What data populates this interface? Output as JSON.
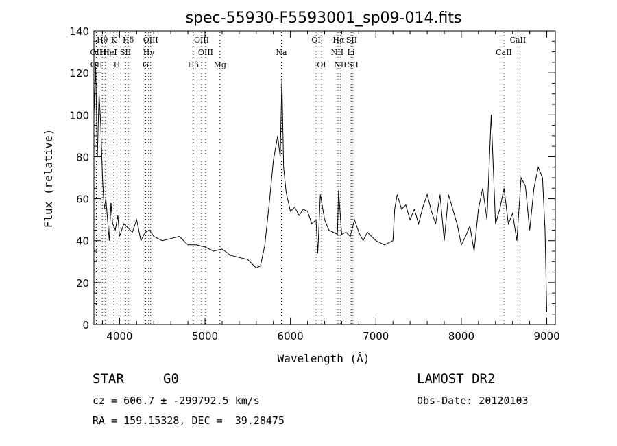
{
  "chart_data": {
    "type": "line",
    "title": "spec-55930-F5593001_sp09-014.fits",
    "xlabel": "Wavelength (Å)",
    "ylabel": "Flux (relative)",
    "xlim": [
      3700,
      9100
    ],
    "ylim": [
      0,
      140
    ],
    "xticks": [
      4000,
      5000,
      6000,
      7000,
      8000,
      9000
    ],
    "yticks": [
      0,
      20,
      40,
      60,
      80,
      100,
      120,
      140
    ],
    "grid": false,
    "series": [
      {
        "x": [
          3700,
          3720,
          3740,
          3760,
          3780,
          3800,
          3820,
          3840,
          3860,
          3880,
          3900,
          3920,
          3950,
          3980,
          4000,
          4050,
          4100,
          4150,
          4200,
          4250,
          4300,
          4350,
          4400,
          4500,
          4600,
          4700,
          4800,
          4900,
          5000,
          5100,
          5200,
          5300,
          5400,
          5500,
          5600,
          5650,
          5700,
          5750,
          5800,
          5850,
          5880,
          5900,
          5920,
          5950,
          6000,
          6050,
          6100,
          6150,
          6200,
          6250,
          6300,
          6320,
          6350,
          6400,
          6450,
          6500,
          6550,
          6563,
          6600,
          6650,
          6700,
          6750,
          6800,
          6850,
          6900,
          6950,
          7000,
          7100,
          7200,
          7220,
          7250,
          7300,
          7350,
          7400,
          7450,
          7500,
          7550,
          7600,
          7650,
          7700,
          7750,
          7800,
          7850,
          7900,
          7950,
          8000,
          8050,
          8100,
          8150,
          8200,
          8250,
          8300,
          8350,
          8400,
          8450,
          8500,
          8550,
          8600,
          8650,
          8700,
          8750,
          8800,
          8850,
          8900,
          8950,
          8980,
          9000
        ],
        "y": [
          100,
          123,
          80,
          110,
          95,
          70,
          55,
          60,
          50,
          40,
          58,
          48,
          45,
          52,
          42,
          48,
          46,
          44,
          50,
          40,
          44,
          45,
          42,
          40,
          41,
          42,
          38,
          38,
          37,
          35,
          36,
          33,
          32,
          31,
          27,
          28,
          38,
          57,
          78,
          90,
          80,
          117,
          75,
          63,
          54,
          56,
          52,
          55,
          54,
          48,
          50,
          34,
          62,
          50,
          45,
          44,
          43,
          64,
          43,
          44,
          42,
          50,
          44,
          40,
          44,
          42,
          40,
          38,
          40,
          55,
          62,
          55,
          57,
          50,
          55,
          48,
          56,
          62,
          54,
          48,
          62,
          40,
          62,
          55,
          48,
          38,
          42,
          47,
          35,
          55,
          65,
          50,
          100,
          48,
          55,
          65,
          48,
          53,
          40,
          70,
          66,
          45,
          65,
          75,
          70,
          45,
          6
        ]
      }
    ],
    "line_markers": [
      {
        "label": "Hθ",
        "x": 3798,
        "color": "#000000"
      },
      {
        "label": "OII",
        "x": 3727,
        "color": "#000000"
      },
      {
        "label": "OII",
        "x": 3729,
        "color": "#000000"
      },
      {
        "label": "Hη",
        "x": 3835,
        "color": "#000000"
      },
      {
        "label": "K",
        "x": 3934,
        "color": "#000000"
      },
      {
        "label": "HeI",
        "x": 3889,
        "color": "#000000"
      },
      {
        "label": "H",
        "x": 3969,
        "color": "#000000"
      },
      {
        "label": "SII",
        "x": 4070,
        "color": "#000000"
      },
      {
        "label": "Hδ",
        "x": 4102,
        "color": "#000000"
      },
      {
        "label": "OIII",
        "x": 4364,
        "color": "#000000"
      },
      {
        "label": "Hγ",
        "x": 4341,
        "color": "#000000"
      },
      {
        "label": "G",
        "x": 4305,
        "color": "#000000"
      },
      {
        "label": "Hβ",
        "x": 4862,
        "color": "#000000"
      },
      {
        "label": "OIII",
        "x": 4960,
        "color": "#000000"
      },
      {
        "label": "OIII",
        "x": 5008,
        "color": "#000000"
      },
      {
        "label": "Mg",
        "x": 5175,
        "color": "#000000"
      },
      {
        "label": "Na",
        "x": 5894,
        "color": "#000000"
      },
      {
        "label": "OI",
        "x": 6300,
        "color": "#cc0000"
      },
      {
        "label": "OI",
        "x": 6363,
        "color": "#cc0000"
      },
      {
        "label": "Hα",
        "x": 6564,
        "color": "#cc0000"
      },
      {
        "label": "NII",
        "x": 6548,
        "color": "#cc0000"
      },
      {
        "label": "NII",
        "x": 6583,
        "color": "#cc0000"
      },
      {
        "label": "SII",
        "x": 6717,
        "color": "#cc0000"
      },
      {
        "label": "SII",
        "x": 6731,
        "color": "#cc0000"
      },
      {
        "label": "Li",
        "x": 6708,
        "color": "#cc0000"
      },
      {
        "label": "CaII",
        "x": 8498,
        "color": "#cc0000"
      },
      {
        "label": "CaII",
        "x": 8662,
        "color": "#cc0000"
      }
    ]
  },
  "info": {
    "class": "STAR",
    "subclass": "G0",
    "survey": "LAMOST DR2",
    "cz": "cz = 606.7 ± -299792.5 km/s",
    "obsdate": "Obs-Date: 20120103",
    "radec": "RA = 159.15328, DEC =  39.28475"
  }
}
